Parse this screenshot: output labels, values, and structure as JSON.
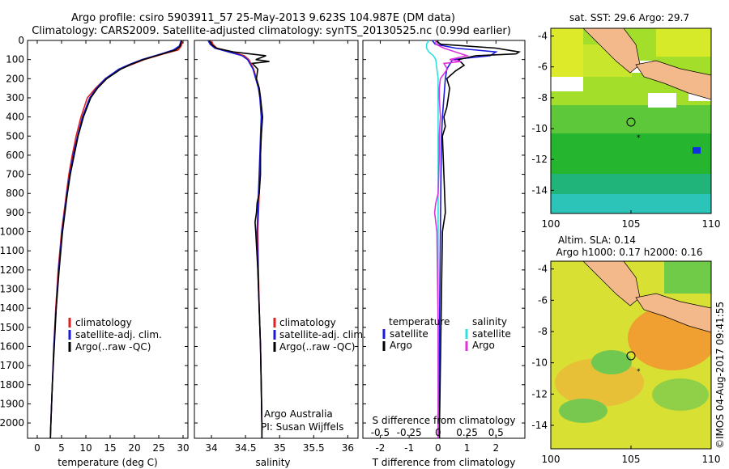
{
  "header": {
    "line1": "Argo profile: csiro 5903911_57 25-May-2013 9.623S 104.987E (DM data)",
    "line2": "Climatology: CARS2009. Satellite-adjusted climatology: synTS_20130525.nc (0.99d earlier)"
  },
  "colors": {
    "climatology": "#e02020",
    "satellite": "#1a1adc",
    "argo": "#000000",
    "sat_salinity": "#30e0e0",
    "argo_salinity": "#e030e0"
  },
  "chart_data": [
    {
      "name": "temperature",
      "type": "line",
      "xlabel": "temperature (deg C)",
      "ylabel": "",
      "xlim": [
        -2,
        31
      ],
      "ylim": [
        2080,
        0
      ],
      "xticks": [
        0,
        5,
        10,
        15,
        20,
        25,
        30
      ],
      "yticks": [
        0,
        100,
        200,
        300,
        400,
        500,
        600,
        700,
        800,
        900,
        1000,
        1100,
        1200,
        1300,
        1400,
        1500,
        1600,
        1700,
        1800,
        1900,
        2000
      ],
      "legend": [
        "climatology",
        "satellite-adj. clim.",
        "Argo(..raw -QC)"
      ],
      "series": [
        {
          "name": "climatology",
          "depth": [
            0,
            10,
            30,
            50,
            70,
            100,
            125,
            150,
            200,
            250,
            300,
            400,
            500,
            600,
            700,
            800,
            900,
            1000,
            1200,
            1400,
            1600,
            1800,
            2000,
            2080
          ],
          "values": [
            29.9,
            29.8,
            29.6,
            29.0,
            26.0,
            22.0,
            19.5,
            17.0,
            14.0,
            12.0,
            10.3,
            9.0,
            8.0,
            7.2,
            6.5,
            6.0,
            5.5,
            5.0,
            4.3,
            3.8,
            3.4,
            3.1,
            2.8,
            2.7
          ]
        },
        {
          "name": "satellite-adj. clim.",
          "depth": [
            0,
            10,
            30,
            50,
            70,
            100,
            125,
            150,
            200,
            250,
            300,
            400,
            500,
            600,
            700,
            800,
            900,
            1000,
            1200,
            1400,
            1600,
            1800,
            2000,
            2080
          ],
          "values": [
            29.6,
            29.5,
            29.2,
            28.0,
            25.5,
            21.5,
            19.0,
            16.8,
            14.0,
            12.2,
            10.8,
            9.3,
            8.3,
            7.4,
            6.7,
            6.1,
            5.6,
            5.1,
            4.4,
            3.9,
            3.4,
            3.1,
            2.8,
            2.7
          ]
        },
        {
          "name": "Argo(..raw -QC)",
          "depth": [
            0,
            10,
            30,
            50,
            70,
            100,
            125,
            150,
            200,
            250,
            300,
            400,
            500,
            600,
            700,
            800,
            900,
            1000,
            1200,
            1400,
            1600,
            1800,
            2000,
            2080
          ],
          "values": [
            29.7,
            29.6,
            29.4,
            28.5,
            25.8,
            21.8,
            19.3,
            17.2,
            14.3,
            12.4,
            11.0,
            9.5,
            8.4,
            7.6,
            6.8,
            6.2,
            5.7,
            5.2,
            4.5,
            3.9,
            3.5,
            3.1,
            2.8,
            2.7
          ]
        }
      ]
    },
    {
      "name": "salinity",
      "type": "line",
      "xlabel": "salinity",
      "xlim": [
        33.75,
        36.15
      ],
      "ylim": [
        2080,
        0
      ],
      "xticks": [
        34,
        34.5,
        35,
        35.5,
        36
      ],
      "legend": [
        "climatology",
        "satellite-adj. clim.",
        "Argo(..raw -QC)"
      ],
      "annotations": [
        "Argo Australia",
        "PI: Susan Wijffels"
      ],
      "series": [
        {
          "name": "climatology",
          "depth": [
            0,
            20,
            40,
            60,
            80,
            100,
            150,
            200,
            250,
            300,
            400,
            500,
            600,
            800,
            1000,
            1200,
            1400,
            1600,
            1800,
            2000,
            2080
          ],
          "values": [
            34.0,
            34.02,
            34.08,
            34.3,
            34.48,
            34.55,
            34.62,
            34.66,
            34.7,
            34.72,
            34.74,
            34.73,
            34.72,
            34.7,
            34.68,
            34.69,
            34.7,
            34.72,
            34.73,
            34.74,
            34.74
          ]
        },
        {
          "name": "satellite-adj. clim.",
          "depth": [
            0,
            20,
            40,
            60,
            80,
            100,
            150,
            200,
            250,
            300,
            400,
            500,
            600,
            800,
            1000,
            1200,
            1400,
            1600,
            1800,
            2000,
            2080
          ],
          "values": [
            33.95,
            33.98,
            34.05,
            34.25,
            34.45,
            34.53,
            34.61,
            34.65,
            34.69,
            34.71,
            34.73,
            34.72,
            34.71,
            34.69,
            34.67,
            34.68,
            34.7,
            34.72,
            34.73,
            34.74,
            34.74
          ]
        },
        {
          "name": "Argo(..raw -QC)",
          "depth": [
            0,
            20,
            40,
            60,
            80,
            100,
            110,
            120,
            150,
            200,
            250,
            300,
            400,
            500,
            600,
            700,
            800,
            850,
            900,
            950,
            1000,
            1200,
            1400,
            1600,
            1800,
            2000,
            2080
          ],
          "values": [
            33.97,
            34.0,
            34.07,
            34.32,
            34.8,
            34.65,
            34.85,
            34.6,
            34.68,
            34.66,
            34.7,
            34.72,
            34.75,
            34.73,
            34.72,
            34.72,
            34.7,
            34.67,
            34.66,
            34.64,
            34.65,
            34.68,
            34.7,
            34.72,
            34.73,
            34.74,
            34.74
          ]
        }
      ]
    },
    {
      "name": "difference",
      "type": "line",
      "xlabel": "T difference from climatology",
      "xlabel_top": "S difference from climatology",
      "xlim": [
        -2.6,
        3.0
      ],
      "ylim": [
        2080,
        0
      ],
      "xticks": [
        -2,
        -1,
        0,
        1,
        2
      ],
      "xticks_s": [
        "-0.5",
        "-0.25",
        "0",
        "0.25",
        "0.5"
      ],
      "xticks_s_pos": [
        -2,
        -1,
        0,
        1,
        2
      ],
      "legend": {
        "temperature_title": "temperature",
        "salinity_title": "salinity",
        "entries": [
          "satellite",
          "Argo",
          "satellite",
          "Argo"
        ]
      },
      "series": [
        {
          "name": "temperature satellite",
          "depth": [
            0,
            20,
            40,
            60,
            80,
            100,
            150,
            200,
            300,
            400,
            500,
            700,
            1000,
            1500,
            2000,
            2080
          ],
          "values": [
            -0.2,
            -0.1,
            0.6,
            2.0,
            1.8,
            0.5,
            0.3,
            0.25,
            0.2,
            0.15,
            0.12,
            0.1,
            0.08,
            0.05,
            0.02,
            0.02
          ]
        },
        {
          "name": "temperature Argo",
          "depth": [
            0,
            20,
            40,
            60,
            70,
            80,
            100,
            130,
            160,
            200,
            250,
            300,
            350,
            400,
            450,
            500,
            700,
            900,
            1000,
            1500,
            2000,
            2080
          ],
          "values": [
            -0.1,
            0.1,
            2.0,
            2.8,
            2.7,
            1.3,
            0.7,
            0.9,
            0.6,
            0.3,
            0.4,
            0.35,
            0.3,
            0.2,
            0.25,
            0.15,
            0.2,
            0.25,
            0.15,
            0.1,
            0.05,
            0.05
          ]
        },
        {
          "name": "salinity satellite",
          "depth": [
            0,
            20,
            40,
            60,
            80,
            100,
            150,
            200,
            300,
            500,
            700,
            1000,
            1500,
            2000,
            2080
          ],
          "values": [
            -0.08,
            -0.1,
            -0.1,
            -0.08,
            -0.04,
            -0.02,
            -0.01,
            0.0,
            0.0,
            0.0,
            0.0,
            0.0,
            0.0,
            0.0,
            0.0
          ]
        },
        {
          "name": "salinity Argo",
          "depth": [
            0,
            20,
            40,
            60,
            80,
            100,
            110,
            120,
            150,
            200,
            250,
            300,
            400,
            500,
            600,
            800,
            850,
            900,
            950,
            1000,
            1500,
            2000,
            2080
          ],
          "values": [
            -0.02,
            -0.02,
            0.05,
            0.15,
            0.25,
            0.1,
            0.2,
            0.05,
            0.08,
            0.02,
            0.01,
            0.01,
            0.02,
            0.01,
            0.01,
            0.0,
            -0.02,
            -0.03,
            -0.02,
            -0.01,
            0.0,
            0.0,
            0.0
          ]
        }
      ]
    },
    {
      "name": "map_sst",
      "type": "heatmap",
      "title": "sat. SST: 29.6 Argo: 29.7",
      "xlim": [
        100,
        110
      ],
      "ylim": [
        -15.5,
        -3.5
      ],
      "xticks": [
        100,
        105,
        110
      ],
      "yticks": [
        -14,
        -12,
        -10,
        -8,
        -6,
        -4
      ],
      "marker": [
        104.987,
        -9.623
      ]
    },
    {
      "name": "map_sla",
      "type": "heatmap",
      "title": "Altim. SLA: 0.14",
      "subtitle": "Argo h1000: 0.17 h2000: 0.16",
      "xlim": [
        100,
        110
      ],
      "ylim": [
        -15.5,
        -3.5
      ],
      "xticks": [
        100,
        105,
        110
      ],
      "yticks": [
        -14,
        -12,
        -10,
        -8,
        -6,
        -4
      ],
      "marker": [
        104.987,
        -9.623
      ]
    }
  ],
  "footer": {
    "stamp": "©IMOS 04-Aug-2017 09:41:55"
  }
}
